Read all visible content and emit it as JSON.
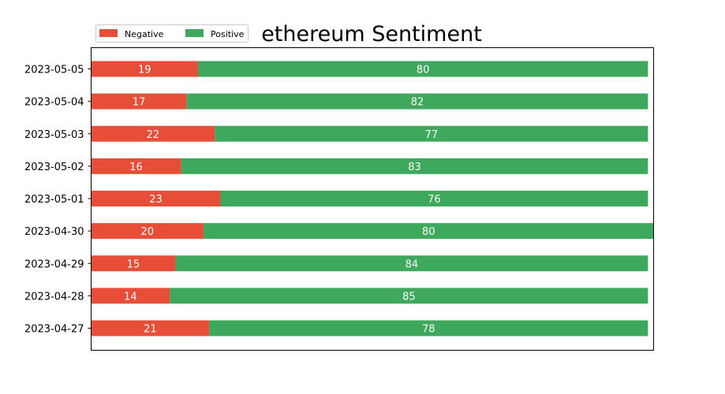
{
  "chart_data": {
    "type": "bar",
    "orientation": "horizontal",
    "stacked": true,
    "title": "ethereum Sentiment",
    "xlabel": "",
    "ylabel": "",
    "categories": [
      "2023-05-05",
      "2023-05-04",
      "2023-05-03",
      "2023-05-02",
      "2023-05-01",
      "2023-04-30",
      "2023-04-29",
      "2023-04-28",
      "2023-04-27"
    ],
    "series": [
      {
        "name": "Negative",
        "color": "#e64e37",
        "values": [
          19,
          17,
          22,
          16,
          23,
          20,
          15,
          14,
          21
        ]
      },
      {
        "name": "Positive",
        "color": "#3ea95d",
        "values": [
          80,
          82,
          77,
          83,
          76,
          80,
          84,
          85,
          78
        ]
      }
    ],
    "legend_position": "top-left",
    "grid": false,
    "x_axis_visible": false
  }
}
